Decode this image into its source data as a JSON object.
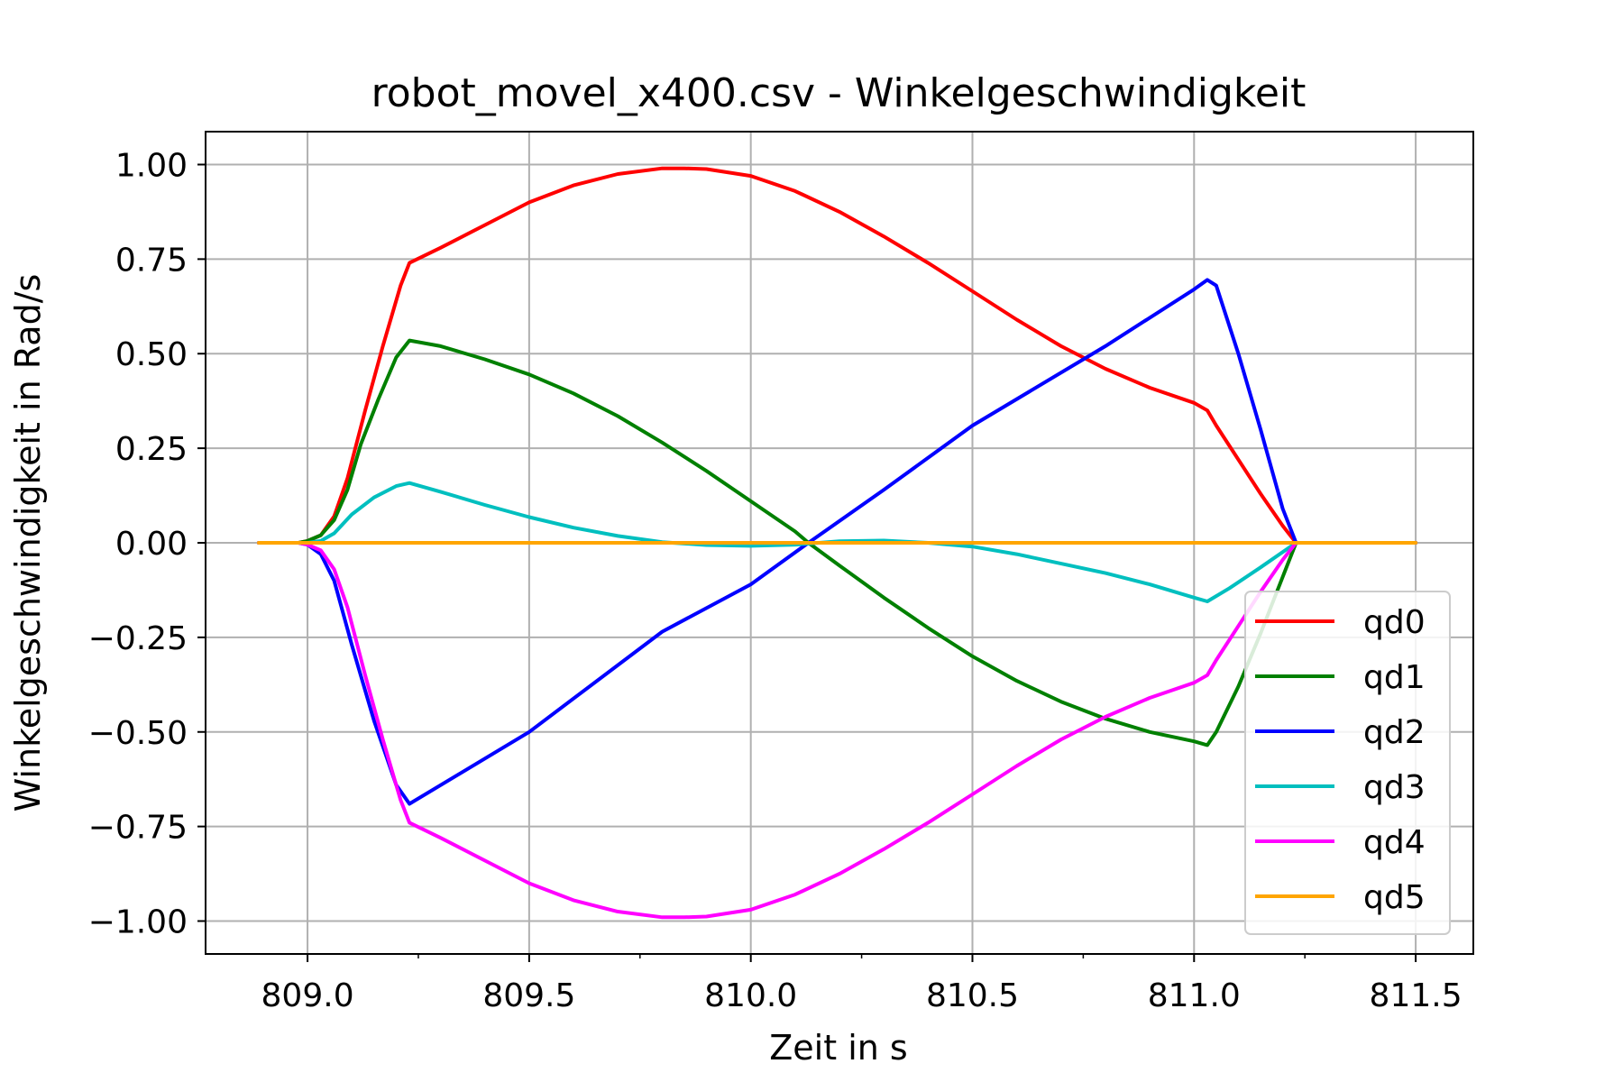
{
  "chart_data": {
    "type": "line",
    "title": "robot_movel_x400.csv - Winkelgeschwindigkeit",
    "xlabel": "Zeit in s",
    "ylabel": "Winkelgeschwindigkeit in Rad/s",
    "xlim": [
      808.77,
      811.63
    ],
    "ylim": [
      -1.087,
      1.087
    ],
    "grid": true,
    "legend_position": "lower-right",
    "xticks": [
      809.0,
      809.5,
      810.0,
      810.5,
      811.0,
      811.5
    ],
    "xtick_labels": [
      "809.0",
      "809.5",
      "810.0",
      "810.5",
      "811.0",
      "811.5"
    ],
    "yticks": [
      1.0,
      0.75,
      0.5,
      0.25,
      0.0,
      -0.25,
      -0.5,
      -0.75,
      -1.0
    ],
    "ytick_labels": [
      "1.00",
      "0.75",
      "0.50",
      "0.25",
      "0.00",
      "−0.25",
      "−0.50",
      "−0.75",
      "−1.00"
    ],
    "series": [
      {
        "name": "qd0",
        "color": "#ff0000",
        "x": [
          808.89,
          808.98,
          809.0,
          809.03,
          809.06,
          809.09,
          809.13,
          809.17,
          809.21,
          809.23,
          809.3,
          809.4,
          809.5,
          809.6,
          809.7,
          809.8,
          809.85,
          809.9,
          810.0,
          810.1,
          810.2,
          810.3,
          810.4,
          810.5,
          810.6,
          810.7,
          810.8,
          810.9,
          811.0,
          811.03,
          811.05,
          811.1,
          811.15,
          811.2,
          811.23,
          811.3,
          811.5
        ],
        "y": [
          0.0,
          0.0,
          0.005,
          0.02,
          0.07,
          0.17,
          0.35,
          0.52,
          0.68,
          0.74,
          0.78,
          0.84,
          0.9,
          0.945,
          0.975,
          0.99,
          0.99,
          0.988,
          0.97,
          0.93,
          0.875,
          0.81,
          0.74,
          0.665,
          0.59,
          0.52,
          0.46,
          0.41,
          0.37,
          0.35,
          0.31,
          0.22,
          0.13,
          0.045,
          0.0,
          0.0,
          0.0
        ]
      },
      {
        "name": "qd1",
        "color": "#008000",
        "x": [
          808.89,
          808.98,
          809.0,
          809.03,
          809.06,
          809.09,
          809.12,
          809.16,
          809.2,
          809.23,
          809.3,
          809.4,
          809.5,
          809.6,
          809.7,
          809.8,
          809.9,
          810.0,
          810.1,
          810.13,
          810.2,
          810.3,
          810.4,
          810.5,
          810.6,
          810.7,
          810.8,
          810.9,
          811.0,
          811.03,
          811.05,
          811.1,
          811.15,
          811.2,
          811.23,
          811.3,
          811.5
        ],
        "y": [
          0.0,
          0.0,
          0.005,
          0.02,
          0.06,
          0.14,
          0.26,
          0.38,
          0.49,
          0.535,
          0.52,
          0.485,
          0.445,
          0.395,
          0.335,
          0.265,
          0.19,
          0.11,
          0.03,
          0.0,
          -0.06,
          -0.145,
          -0.225,
          -0.3,
          -0.365,
          -0.42,
          -0.465,
          -0.5,
          -0.525,
          -0.535,
          -0.5,
          -0.38,
          -0.24,
          -0.09,
          0.0,
          0.0,
          0.0
        ]
      },
      {
        "name": "qd2",
        "color": "#0000ff",
        "x": [
          808.89,
          808.98,
          809.0,
          809.03,
          809.06,
          809.1,
          809.15,
          809.2,
          809.23,
          809.5,
          809.8,
          810.0,
          810.13,
          810.3,
          810.5,
          810.8,
          811.0,
          811.03,
          811.05,
          811.1,
          811.15,
          811.2,
          811.23,
          811.3,
          811.5
        ],
        "y": [
          0.0,
          0.0,
          -0.005,
          -0.03,
          -0.1,
          -0.27,
          -0.47,
          -0.64,
          -0.69,
          -0.5,
          -0.235,
          -0.11,
          0.0,
          0.14,
          0.31,
          0.52,
          0.67,
          0.695,
          0.68,
          0.5,
          0.3,
          0.09,
          0.0,
          0.0,
          0.0
        ]
      },
      {
        "name": "qd3",
        "color": "#00bfbf",
        "x": [
          808.89,
          809.0,
          809.03,
          809.06,
          809.1,
          809.15,
          809.2,
          809.23,
          809.3,
          809.4,
          809.5,
          809.6,
          809.7,
          809.8,
          809.9,
          810.0,
          810.1,
          810.2,
          810.3,
          810.4,
          810.5,
          810.6,
          810.7,
          810.8,
          810.9,
          811.0,
          811.03,
          811.08,
          811.15,
          811.23,
          811.5
        ],
        "y": [
          0.0,
          0.0,
          0.005,
          0.025,
          0.075,
          0.12,
          0.15,
          0.158,
          0.135,
          0.1,
          0.068,
          0.04,
          0.018,
          0.002,
          -0.006,
          -0.008,
          -0.005,
          0.004,
          0.006,
          0.0,
          -0.01,
          -0.03,
          -0.055,
          -0.08,
          -0.11,
          -0.145,
          -0.155,
          -0.12,
          -0.065,
          0.0,
          0.0
        ]
      },
      {
        "name": "qd4",
        "color": "#ff00ff",
        "x": [
          808.89,
          808.98,
          809.0,
          809.03,
          809.06,
          809.09,
          809.13,
          809.17,
          809.21,
          809.23,
          809.3,
          809.4,
          809.5,
          809.6,
          809.7,
          809.8,
          809.85,
          809.9,
          810.0,
          810.1,
          810.2,
          810.3,
          810.4,
          810.5,
          810.6,
          810.7,
          810.8,
          810.9,
          811.0,
          811.03,
          811.05,
          811.1,
          811.15,
          811.2,
          811.23,
          811.3,
          811.5
        ],
        "y": [
          0.0,
          0.0,
          -0.005,
          -0.02,
          -0.07,
          -0.17,
          -0.35,
          -0.52,
          -0.68,
          -0.74,
          -0.78,
          -0.84,
          -0.9,
          -0.945,
          -0.975,
          -0.99,
          -0.99,
          -0.988,
          -0.97,
          -0.93,
          -0.875,
          -0.81,
          -0.74,
          -0.665,
          -0.59,
          -0.52,
          -0.46,
          -0.41,
          -0.37,
          -0.35,
          -0.31,
          -0.22,
          -0.13,
          -0.045,
          0.0,
          0.0,
          0.0
        ]
      },
      {
        "name": "qd5",
        "color": "#ffa500",
        "x": [
          808.89,
          809.5,
          810.0,
          810.5,
          811.0,
          811.23,
          811.5
        ],
        "y": [
          0.0,
          0.0,
          0.0,
          0.0,
          0.0,
          0.0,
          0.0
        ]
      }
    ]
  }
}
